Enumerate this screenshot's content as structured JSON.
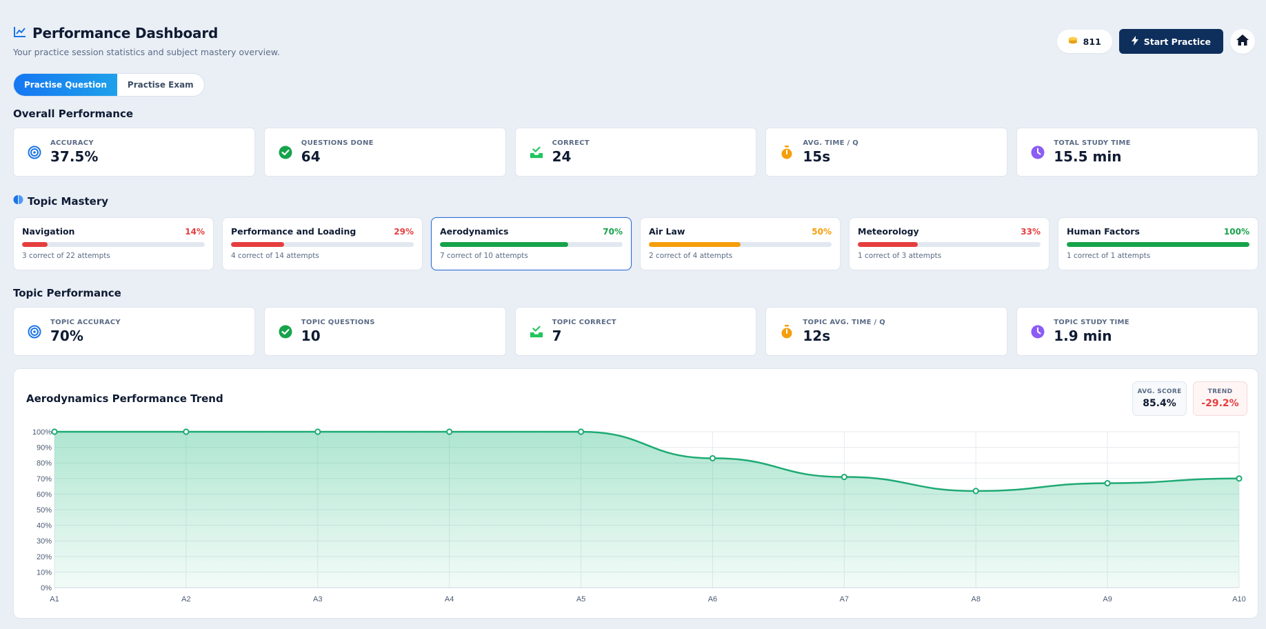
{
  "header": {
    "title": "Performance Dashboard",
    "subtitle": "Your practice session statistics and subject mastery overview.",
    "coins": "811",
    "start_label": "Start Practice"
  },
  "tabs": [
    {
      "label": "Practise Question",
      "active": true
    },
    {
      "label": "Practise Exam",
      "active": false
    }
  ],
  "overall": {
    "title": "Overall Performance",
    "stats": [
      {
        "label": "ACCURACY",
        "value": "37.5%",
        "icon": "target-icon",
        "color": "#1a73e8"
      },
      {
        "label": "QUESTIONS DONE",
        "value": "64",
        "icon": "check-circle-icon",
        "color": "#16a34a"
      },
      {
        "label": "CORRECT",
        "value": "24",
        "icon": "inbox-check-icon",
        "color": "#22c55e"
      },
      {
        "label": "AVG. TIME / Q",
        "value": "15s",
        "icon": "stopwatch-icon",
        "color": "#f59e0b"
      },
      {
        "label": "TOTAL STUDY TIME",
        "value": "15.5 min",
        "icon": "clock-icon",
        "color": "#8b5cf6"
      }
    ]
  },
  "mastery": {
    "title": "Topic Mastery",
    "topics": [
      {
        "name": "Navigation",
        "pct": "14%",
        "fraction": 0.14,
        "detail": "3 correct of 22 attempts",
        "color": "#e53e3e",
        "selected": false
      },
      {
        "name": "Performance and Loading",
        "pct": "29%",
        "fraction": 0.29,
        "detail": "4 correct of 14 attempts",
        "color": "#e53e3e",
        "selected": false
      },
      {
        "name": "Aerodynamics",
        "pct": "70%",
        "fraction": 0.7,
        "detail": "7 correct of 10 attempts",
        "color": "#16a34a",
        "selected": true
      },
      {
        "name": "Air Law",
        "pct": "50%",
        "fraction": 0.5,
        "detail": "2 correct of 4 attempts",
        "color": "#f59e0b",
        "selected": false
      },
      {
        "name": "Meteorology",
        "pct": "33%",
        "fraction": 0.33,
        "detail": "1 correct of 3 attempts",
        "color": "#e53e3e",
        "selected": false
      },
      {
        "name": "Human Factors",
        "pct": "100%",
        "fraction": 1.0,
        "detail": "1 correct of 1 attempts",
        "color": "#16a34a",
        "selected": false
      }
    ]
  },
  "topic_perf": {
    "title": "Topic Performance",
    "stats": [
      {
        "label": "TOPIC ACCURACY",
        "value": "70%",
        "icon": "target-icon",
        "color": "#1a73e8"
      },
      {
        "label": "TOPIC QUESTIONS",
        "value": "10",
        "icon": "check-circle-icon",
        "color": "#16a34a"
      },
      {
        "label": "TOPIC CORRECT",
        "value": "7",
        "icon": "inbox-check-icon",
        "color": "#22c55e"
      },
      {
        "label": "TOPIC AVG. TIME / Q",
        "value": "12s",
        "icon": "stopwatch-icon",
        "color": "#f59e0b"
      },
      {
        "label": "TOPIC STUDY TIME",
        "value": "1.9 min",
        "icon": "clock-icon",
        "color": "#8b5cf6"
      }
    ]
  },
  "chart_card": {
    "title": "Aerodynamics Performance Trend",
    "avg_label": "AVG. SCORE",
    "avg_value": "85.4%",
    "trend_label": "TREND",
    "trend_value": "-29.2%",
    "trend_color": "#e53e3e"
  },
  "chart_data": {
    "type": "area",
    "categories": [
      "A1",
      "A2",
      "A3",
      "A4",
      "A5",
      "A6",
      "A7",
      "A8",
      "A9",
      "A10"
    ],
    "values": [
      100,
      100,
      100,
      100,
      100,
      83,
      71,
      62,
      67,
      70
    ],
    "ylim": [
      0,
      100
    ],
    "yticks": [
      "0%",
      "10%",
      "20%",
      "30%",
      "40%",
      "50%",
      "60%",
      "70%",
      "80%",
      "90%",
      "100%"
    ],
    "grid": true,
    "line_color": "#1eaa73"
  }
}
